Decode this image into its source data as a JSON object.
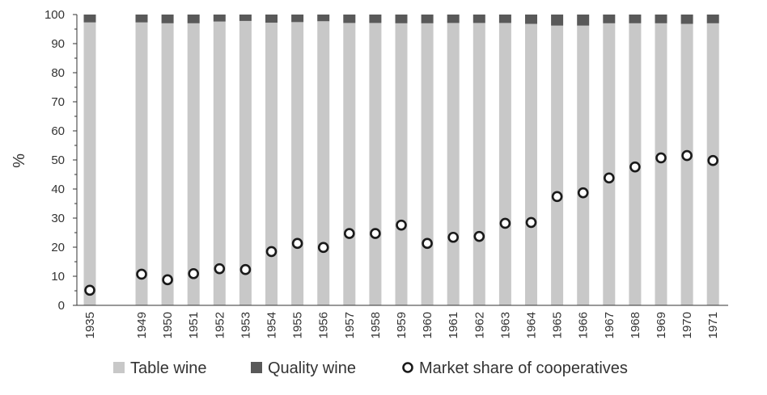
{
  "chart_data": {
    "type": "bar",
    "stacked": true,
    "ylabel": "%",
    "ylim": [
      0,
      100
    ],
    "yticks": [
      0,
      10,
      20,
      30,
      40,
      50,
      60,
      70,
      80,
      90,
      100
    ],
    "grid": false,
    "legend_position": "bottom",
    "categories": [
      "1935",
      "1949",
      "1950",
      "1951",
      "1952",
      "1953",
      "1954",
      "1955",
      "1956",
      "1957",
      "1958",
      "1959",
      "1960",
      "1961",
      "1962",
      "1963",
      "1964",
      "1965",
      "1966",
      "1967",
      "1968",
      "1969",
      "1970",
      "1971"
    ],
    "series": [
      {
        "name": "Table wine",
        "kind": "bar",
        "color": "#c8c8c8",
        "values": [
          97.3,
          97.3,
          97.0,
          97.0,
          97.6,
          97.8,
          97.2,
          97.4,
          97.7,
          97.1,
          97.1,
          97.0,
          97.0,
          97.1,
          97.1,
          97.1,
          96.8,
          96.2,
          96.2,
          97.0,
          97.0,
          97.0,
          96.8,
          97.0
        ]
      },
      {
        "name": "Quality wine",
        "kind": "bar",
        "color": "#595959",
        "values": [
          2.7,
          2.7,
          3.0,
          3.0,
          2.4,
          2.2,
          2.8,
          2.6,
          2.3,
          2.9,
          2.9,
          3.0,
          3.0,
          2.9,
          2.9,
          2.9,
          3.2,
          3.8,
          3.8,
          3.0,
          3.0,
          3.0,
          3.2,
          3.0
        ]
      },
      {
        "name": "Market share of cooperatives",
        "kind": "scatter",
        "color": "#1a1a1a",
        "values": [
          5.2,
          10.7,
          8.8,
          10.9,
          12.6,
          12.3,
          18.5,
          21.3,
          19.9,
          24.7,
          24.7,
          27.6,
          21.3,
          23.4,
          23.7,
          28.2,
          28.5,
          37.4,
          38.7,
          43.8,
          47.6,
          50.7,
          51.5,
          49.8
        ]
      }
    ]
  }
}
